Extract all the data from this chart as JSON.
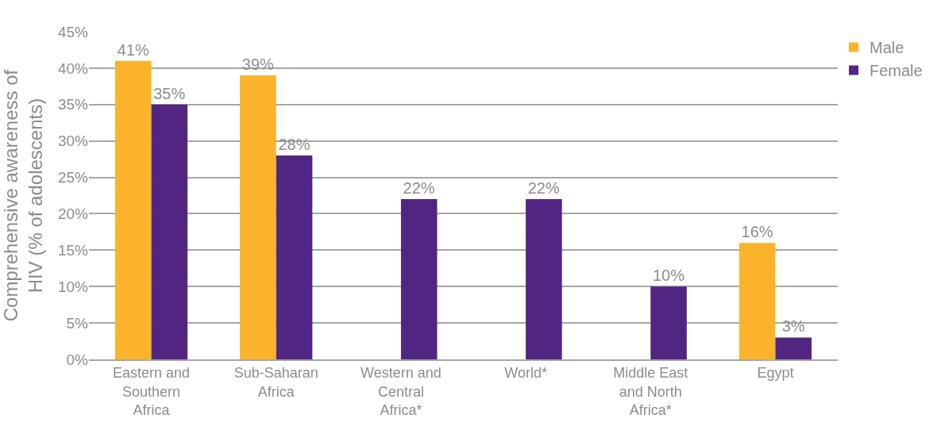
{
  "chart_data": {
    "type": "bar",
    "ylabel": "Comprehensive awareness of HIV (% of adolescents)",
    "categories": [
      "Eastern and Southern Africa",
      "Sub-Saharan Africa",
      "Western and Central Africa*",
      "World*",
      "Middle East and North Africa*",
      "Egypt"
    ],
    "series": [
      {
        "name": "Male",
        "color": "#fbb32b",
        "values": [
          41,
          39,
          null,
          null,
          null,
          16
        ],
        "value_labels": [
          "41%",
          "39%",
          null,
          null,
          null,
          "16%"
        ]
      },
      {
        "name": "Female",
        "color": "#512682",
        "values": [
          35,
          28,
          22,
          22,
          10,
          3
        ],
        "value_labels": [
          "35%",
          "28%",
          "22%",
          "22%",
          "10%",
          "3%"
        ]
      }
    ],
    "ylim": [
      0,
      45
    ],
    "yticks": [
      {
        "value": 0,
        "label": "0%"
      },
      {
        "value": 5,
        "label": "5%"
      },
      {
        "value": 10,
        "label": "10%"
      },
      {
        "value": 15,
        "label": "15%"
      },
      {
        "value": 20,
        "label": "20%"
      },
      {
        "value": 25,
        "label": "25%"
      },
      {
        "value": 30,
        "label": "30%"
      },
      {
        "value": 35,
        "label": "35%"
      },
      {
        "value": 40,
        "label": "40%"
      },
      {
        "value": 45,
        "label": "45%"
      }
    ],
    "grid": "y",
    "legend": "top right"
  }
}
